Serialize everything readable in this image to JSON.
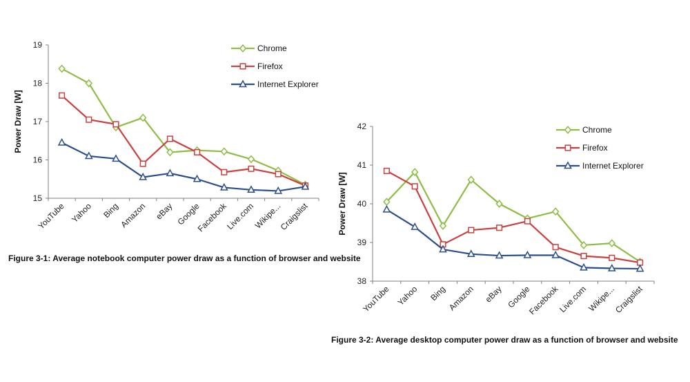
{
  "colors": {
    "chrome": "#8fbc45",
    "firefox": "#c9403f",
    "ie": "#2a4e8c",
    "axis": "#7f7f7f"
  },
  "chart_data": [
    {
      "type": "line",
      "ylabel": "Power Draw [W]",
      "xlabel": "",
      "caption": "Figure 3-1: Average notebook computer power draw as a function of browser and website",
      "ylim": [
        15,
        19
      ],
      "yticks": [
        "15",
        "16",
        "17",
        "18",
        "19"
      ],
      "categories": [
        "YouTube",
        "Yahoo",
        "Bing",
        "Amazon",
        "eBay",
        "Google",
        "Facebook",
        "Live.com",
        "Wikipe...",
        "Craigslist"
      ],
      "legend_position": "top-right",
      "series": [
        {
          "name": "Chrome",
          "color_key": "chrome",
          "marker": "diamond",
          "values": [
            18.38,
            18.0,
            16.85,
            17.1,
            16.2,
            16.25,
            16.22,
            16.02,
            15.72,
            15.35
          ]
        },
        {
          "name": "Firefox",
          "color_key": "firefox",
          "marker": "square",
          "values": [
            17.68,
            17.05,
            16.93,
            15.9,
            16.55,
            16.2,
            15.68,
            15.77,
            15.63,
            15.33
          ]
        },
        {
          "name": "Internet Explorer",
          "color_key": "ie",
          "marker": "triangle",
          "values": [
            16.45,
            16.1,
            16.03,
            15.55,
            15.65,
            15.5,
            15.28,
            15.22,
            15.19,
            15.3
          ]
        }
      ]
    },
    {
      "type": "line",
      "ylabel": "Power Draw [W]",
      "xlabel": "",
      "caption": "Figure 3-2: Average desktop computer power draw as a function of browser and website",
      "ylim": [
        38,
        42
      ],
      "yticks": [
        "38",
        "39",
        "40",
        "41",
        "42"
      ],
      "categories": [
        "YouTube",
        "Yahoo",
        "Bing",
        "Amazon",
        "eBay",
        "Google",
        "Facebook",
        "Live.com",
        "Wikipe...",
        "Craigslist"
      ],
      "legend_position": "top-right",
      "series": [
        {
          "name": "Chrome",
          "color_key": "chrome",
          "marker": "diamond",
          "values": [
            40.05,
            40.82,
            39.43,
            40.62,
            40.0,
            39.62,
            39.8,
            38.93,
            38.98,
            38.5
          ]
        },
        {
          "name": "Firefox",
          "color_key": "firefox",
          "marker": "square",
          "values": [
            40.85,
            40.45,
            38.95,
            39.32,
            39.38,
            39.55,
            38.88,
            38.65,
            38.6,
            38.48
          ]
        },
        {
          "name": "Internet Explorer",
          "color_key": "ie",
          "marker": "triangle",
          "values": [
            39.85,
            39.4,
            38.82,
            38.7,
            38.66,
            38.67,
            38.67,
            38.35,
            38.33,
            38.32
          ]
        }
      ]
    }
  ]
}
